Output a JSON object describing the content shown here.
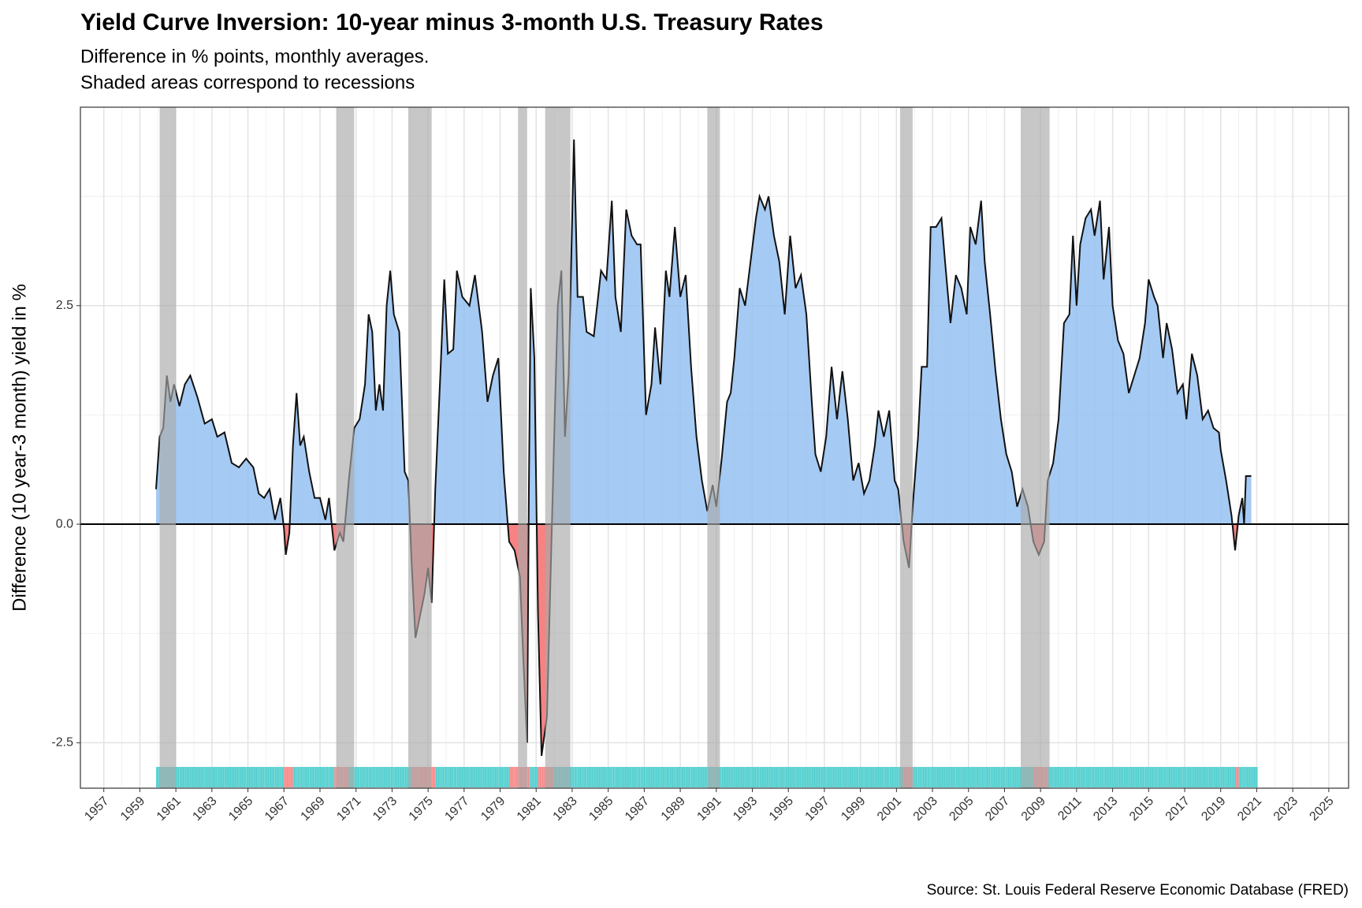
{
  "chart_data": {
    "type": "area",
    "title": "Yield Curve Inversion: 10-year minus 3-month U.S. Treasury Rates",
    "subtitle": [
      "Difference in % points, monthly averages.",
      "Shaded areas correspond to recessions"
    ],
    "y_label": "Difference (10 year-3 month) yield in %",
    "source": "Source: St. Louis Federal Reserve Economic Database (FRED)",
    "x": [
      1959.9,
      1960.1,
      1960.3,
      1960.5,
      1960.7,
      1960.9,
      1961.2,
      1961.5,
      1961.8,
      1962.2,
      1962.6,
      1963.0,
      1963.3,
      1963.7,
      1964.1,
      1964.5,
      1964.9,
      1965.3,
      1965.6,
      1965.9,
      1966.2,
      1966.5,
      1966.8,
      1967.0,
      1967.1,
      1967.3,
      1967.5,
      1967.7,
      1967.9,
      1968.1,
      1968.4,
      1968.7,
      1969.0,
      1969.3,
      1969.5,
      1969.8,
      1970.1,
      1970.3,
      1970.6,
      1970.9,
      1971.2,
      1971.5,
      1971.7,
      1971.9,
      1972.1,
      1972.3,
      1972.5,
      1972.7,
      1972.9,
      1973.1,
      1973.4,
      1973.7,
      1973.9,
      1974.1,
      1974.3,
      1974.5,
      1974.8,
      1975.0,
      1975.2,
      1975.4,
      1975.7,
      1975.9,
      1976.1,
      1976.4,
      1976.6,
      1976.9,
      1977.3,
      1977.6,
      1978.0,
      1978.3,
      1978.6,
      1978.9,
      1979.2,
      1979.5,
      1979.8,
      1980.1,
      1980.3,
      1980.5,
      1980.6,
      1980.7,
      1980.9,
      1981.1,
      1981.3,
      1981.6,
      1981.8,
      1982.0,
      1982.2,
      1982.4,
      1982.6,
      1982.8,
      1983.1,
      1983.3,
      1983.6,
      1983.8,
      1984.2,
      1984.6,
      1984.9,
      1985.2,
      1985.4,
      1985.7,
      1986.0,
      1986.3,
      1986.6,
      1986.8,
      1987.1,
      1987.4,
      1987.6,
      1987.9,
      1988.2,
      1988.4,
      1988.7,
      1989.0,
      1989.3,
      1989.6,
      1989.9,
      1990.2,
      1990.5,
      1990.8,
      1991.0,
      1991.3,
      1991.6,
      1991.8,
      1992.0,
      1992.3,
      1992.6,
      1992.9,
      1993.2,
      1993.4,
      1993.7,
      1993.9,
      1994.2,
      1994.5,
      1994.8,
      1995.1,
      1995.4,
      1995.7,
      1996.0,
      1996.3,
      1996.5,
      1996.8,
      1997.1,
      1997.4,
      1997.7,
      1998.0,
      1998.3,
      1998.6,
      1998.9,
      1999.2,
      1999.5,
      1999.8,
      2000.0,
      2000.3,
      2000.6,
      2000.9,
      2001.1,
      2001.4,
      2001.7,
      2001.9,
      2002.2,
      2002.4,
      2002.7,
      2002.9,
      2003.2,
      2003.5,
      2003.7,
      2004.0,
      2004.3,
      2004.6,
      2004.9,
      2005.1,
      2005.4,
      2005.7,
      2005.9,
      2006.2,
      2006.5,
      2006.8,
      2007.1,
      2007.4,
      2007.7,
      2008.0,
      2008.3,
      2008.6,
      2008.9,
      2009.2,
      2009.4,
      2009.7,
      2010.0,
      2010.3,
      2010.6,
      2010.8,
      2011.0,
      2011.2,
      2011.5,
      2011.8,
      2012.0,
      2012.3,
      2012.5,
      2012.8,
      2013.0,
      2013.3,
      2013.6,
      2013.9,
      2014.2,
      2014.5,
      2014.8,
      2015.0,
      2015.3,
      2015.5,
      2015.8,
      2016.0,
      2016.3,
      2016.6,
      2016.9,
      2017.1,
      2017.4,
      2017.7,
      2018.0,
      2018.3,
      2018.6,
      2018.9,
      2019.0,
      2019.3,
      2019.6,
      2019.8,
      2020.0,
      2020.2,
      2020.3,
      2020.4,
      2020.7
    ],
    "values": [
      0.4,
      1.0,
      1.1,
      1.7,
      1.4,
      1.6,
      1.35,
      1.6,
      1.7,
      1.45,
      1.15,
      1.2,
      1.0,
      1.05,
      0.7,
      0.65,
      0.75,
      0.65,
      0.35,
      0.3,
      0.4,
      0.05,
      0.3,
      -0.05,
      -0.35,
      -0.1,
      0.9,
      1.5,
      0.9,
      1.0,
      0.6,
      0.3,
      0.3,
      0.05,
      0.3,
      -0.3,
      -0.1,
      -0.2,
      0.5,
      1.1,
      1.2,
      1.6,
      2.4,
      2.2,
      1.3,
      1.6,
      1.3,
      2.5,
      2.9,
      2.4,
      2.2,
      0.6,
      0.5,
      -0.5,
      -1.3,
      -1.1,
      -0.8,
      -0.5,
      -0.9,
      0.4,
      1.8,
      2.8,
      1.95,
      2.0,
      2.9,
      2.6,
      2.5,
      2.85,
      2.2,
      1.4,
      1.7,
      1.9,
      0.6,
      -0.2,
      -0.3,
      -0.6,
      -1.6,
      -2.5,
      0.5,
      2.7,
      1.9,
      -1.0,
      -2.65,
      -2.2,
      -0.6,
      1.0,
      2.5,
      2.9,
      1.0,
      1.7,
      4.4,
      2.6,
      2.6,
      2.2,
      2.15,
      2.9,
      2.8,
      3.7,
      2.6,
      2.2,
      3.6,
      3.3,
      3.2,
      3.2,
      1.25,
      1.6,
      2.25,
      1.6,
      2.9,
      2.6,
      3.4,
      2.6,
      2.85,
      1.8,
      1.0,
      0.5,
      0.15,
      0.45,
      0.2,
      0.75,
      1.4,
      1.5,
      1.9,
      2.7,
      2.5,
      3.0,
      3.5,
      3.75,
      3.6,
      3.75,
      3.3,
      3.0,
      2.4,
      3.3,
      2.7,
      2.85,
      2.4,
      1.4,
      0.8,
      0.6,
      1.0,
      1.8,
      1.2,
      1.75,
      1.2,
      0.5,
      0.7,
      0.35,
      0.5,
      0.9,
      1.3,
      1.0,
      1.3,
      0.5,
      0.4,
      -0.2,
      -0.5,
      0.2,
      1.0,
      1.8,
      1.8,
      3.4,
      3.4,
      3.5,
      3.0,
      2.3,
      2.85,
      2.7,
      2.4,
      3.4,
      3.2,
      3.7,
      3.0,
      2.4,
      1.75,
      1.2,
      0.8,
      0.6,
      0.2,
      0.4,
      0.2,
      -0.2,
      -0.35,
      -0.2,
      0.5,
      0.7,
      1.2,
      2.3,
      2.4,
      3.3,
      2.5,
      3.2,
      3.5,
      3.6,
      3.3,
      3.7,
      2.8,
      3.4,
      2.5,
      2.1,
      1.95,
      1.5,
      1.7,
      1.9,
      2.3,
      2.8,
      2.6,
      2.5,
      1.9,
      2.3,
      2.0,
      1.5,
      1.6,
      1.2,
      1.95,
      1.7,
      1.2,
      1.3,
      1.1,
      1.05,
      0.85,
      0.5,
      0.1,
      -0.3,
      0.1,
      0.3,
      0.0,
      0.55,
      0.55
    ],
    "recessions": [
      [
        1960.1,
        1961.0
      ],
      [
        1969.9,
        1970.9
      ],
      [
        1973.9,
        1975.2
      ],
      [
        1980.0,
        1980.5
      ],
      [
        1981.5,
        1982.9
      ],
      [
        1990.5,
        1991.2
      ],
      [
        2001.2,
        2001.9
      ],
      [
        2007.9,
        2009.5
      ]
    ],
    "xlim": [
      1955.7,
      2026.1
    ],
    "ylim": [
      -3.02,
      4.77
    ],
    "xticks": [
      1957,
      1959,
      1961,
      1963,
      1965,
      1967,
      1969,
      1971,
      1973,
      1975,
      1977,
      1979,
      1981,
      1983,
      1985,
      1987,
      1989,
      1991,
      1993,
      1995,
      1997,
      1999,
      2001,
      2003,
      2005,
      2007,
      2009,
      2011,
      2013,
      2015,
      2017,
      2019,
      2021,
      2023,
      2025
    ],
    "yticks": [
      -2.5,
      {
        "value": 0,
        "label": "0.0"
      },
      2.5
    ],
    "grid": true,
    "positive_color": "#8fbdf0",
    "negative_color": "#f77b7b",
    "rug_positive_color": "#55d0d0",
    "rug_negative_color": "#f78a8a",
    "recession_color": "#a9a9a9",
    "line_color": "#111111"
  }
}
